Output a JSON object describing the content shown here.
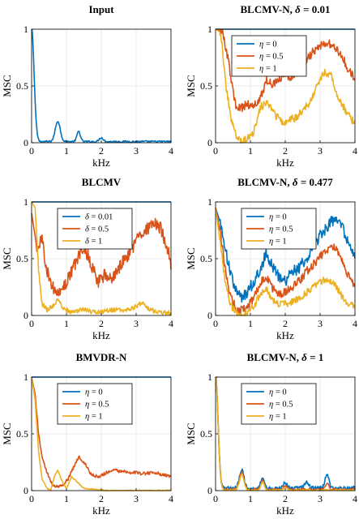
{
  "colors": {
    "blue": "#0072BD",
    "orange": "#D95319",
    "yellow": "#EDB120"
  },
  "chart_data": [
    {
      "type": "line",
      "title": "Input",
      "title_symbol": "",
      "title_value": "",
      "xlabel": "kHz",
      "ylabel": "MSC",
      "xlim": [
        0,
        4
      ],
      "ylim": [
        0,
        1
      ],
      "xticks": [
        "0",
        "1",
        "2",
        "3",
        "4"
      ],
      "yticks": [
        "0",
        "0.5",
        "1"
      ],
      "grid": true,
      "legend": null,
      "series": [
        {
          "color": "blue",
          "style": "decay",
          "peaks": [
            [
              0.0,
              1.0,
              0.1
            ],
            [
              0.75,
              0.18,
              0.1
            ],
            [
              1.35,
              0.09,
              0.07
            ],
            [
              2.0,
              0.035,
              0.08
            ]
          ],
          "base": 0.01,
          "noise": 0.008
        }
      ]
    },
    {
      "type": "line",
      "title": "BLCMV-N, ",
      "title_symbol": "δ",
      "title_value": " = 0.01",
      "xlabel": "kHz",
      "ylabel": "MSC",
      "xlim": [
        0,
        4
      ],
      "ylim": [
        0,
        1
      ],
      "xticks": [
        "0",
        "1",
        "2",
        "3",
        "4"
      ],
      "yticks": [
        "0",
        "0.5",
        "1"
      ],
      "grid": true,
      "legend": "top-left",
      "legend_var": "η",
      "series": [
        {
          "name": "= 0",
          "color": "blue",
          "x": [
            0,
            4
          ],
          "y": [
            1,
            1
          ]
        },
        {
          "name": "= 0.5",
          "color": "orange",
          "x": [
            0,
            0.2,
            0.35,
            0.5,
            0.6,
            0.7,
            0.9,
            1.1,
            1.3,
            1.45,
            1.6,
            1.8,
            2.0,
            2.2,
            2.4,
            2.6,
            2.8,
            3.0,
            3.2,
            3.4,
            3.6,
            3.8,
            4.0
          ],
          "y": [
            1,
            0.98,
            0.75,
            0.45,
            0.3,
            0.3,
            0.34,
            0.32,
            0.4,
            0.55,
            0.52,
            0.55,
            0.6,
            0.58,
            0.68,
            0.72,
            0.8,
            0.85,
            0.88,
            0.84,
            0.78,
            0.65,
            0.55
          ],
          "noise": 0.04
        },
        {
          "name": "= 1",
          "color": "yellow",
          "x": [
            0,
            0.15,
            0.3,
            0.45,
            0.6,
            0.75,
            0.9,
            1.1,
            1.3,
            1.5,
            1.7,
            1.9,
            2.1,
            2.3,
            2.5,
            2.7,
            2.9,
            3.1,
            3.3,
            3.5,
            3.7,
            3.9,
            4.0
          ],
          "y": [
            1,
            0.97,
            0.5,
            0.2,
            0.05,
            0.0,
            0.04,
            0.1,
            0.32,
            0.35,
            0.25,
            0.18,
            0.2,
            0.22,
            0.28,
            0.35,
            0.5,
            0.62,
            0.6,
            0.42,
            0.3,
            0.2,
            0.18
          ],
          "noise": 0.035
        }
      ]
    },
    {
      "type": "line",
      "title": "BLCMV",
      "title_symbol": "",
      "title_value": "",
      "xlabel": "kHz",
      "ylabel": "MSC",
      "xlim": [
        0,
        4
      ],
      "ylim": [
        0,
        1
      ],
      "xticks": [
        "0",
        "1",
        "2",
        "3",
        "4"
      ],
      "yticks": [
        "0",
        "0.5",
        "1"
      ],
      "grid": true,
      "legend": "top-center",
      "legend_var": "δ",
      "series": [
        {
          "name": "= 0.01",
          "color": "blue",
          "x": [
            0,
            4
          ],
          "y": [
            1,
            1
          ]
        },
        {
          "name": "= 0.5",
          "color": "orange",
          "x": [
            0,
            0.15,
            0.3,
            0.45,
            0.6,
            0.75,
            0.9,
            1.1,
            1.3,
            1.5,
            1.7,
            1.9,
            2.1,
            2.3,
            2.5,
            2.7,
            2.9,
            3.1,
            3.3,
            3.5,
            3.7,
            3.9,
            4.0
          ],
          "y": [
            0.9,
            0.6,
            0.65,
            0.4,
            0.25,
            0.18,
            0.25,
            0.35,
            0.5,
            0.62,
            0.45,
            0.3,
            0.35,
            0.32,
            0.42,
            0.5,
            0.6,
            0.7,
            0.75,
            0.8,
            0.78,
            0.6,
            0.45
          ],
          "noise": 0.06
        },
        {
          "name": "= 1",
          "color": "yellow",
          "x": [
            0,
            0.1,
            0.2,
            0.3,
            0.45,
            0.6,
            0.75,
            0.9,
            1.1,
            1.3,
            1.5,
            1.8,
            2.1,
            2.4,
            2.7,
            3.0,
            3.2,
            3.35,
            3.5,
            3.7,
            4.0
          ],
          "y": [
            1,
            0.95,
            0.4,
            0.1,
            0.05,
            0.08,
            0.14,
            0.07,
            0.03,
            0.04,
            0.05,
            0.03,
            0.04,
            0.05,
            0.04,
            0.08,
            0.12,
            0.06,
            0.04,
            0.03,
            0.02
          ],
          "noise": 0.02
        }
      ]
    },
    {
      "type": "line",
      "title": "BLCMV-N, ",
      "title_symbol": "δ",
      "title_value": " = 0.477",
      "xlabel": "kHz",
      "ylabel": "MSC",
      "xlim": [
        0,
        4
      ],
      "ylim": [
        0,
        1
      ],
      "xticks": [
        "0",
        "1",
        "2",
        "3",
        "4"
      ],
      "yticks": [
        "0",
        "0.5",
        "1"
      ],
      "grid": true,
      "legend": "top-center",
      "legend_var": "η",
      "series": [
        {
          "name": "= 0",
          "color": "blue",
          "x": [
            0,
            0.15,
            0.3,
            0.45,
            0.6,
            0.75,
            0.9,
            1.1,
            1.3,
            1.45,
            1.6,
            1.8,
            2.0,
            2.2,
            2.4,
            2.6,
            2.8,
            3.0,
            3.2,
            3.4,
            3.6,
            3.8,
            4.0
          ],
          "y": [
            0.95,
            0.8,
            0.55,
            0.35,
            0.2,
            0.15,
            0.2,
            0.3,
            0.42,
            0.55,
            0.45,
            0.35,
            0.3,
            0.38,
            0.42,
            0.5,
            0.6,
            0.7,
            0.78,
            0.85,
            0.8,
            0.65,
            0.5
          ],
          "noise": 0.05
        },
        {
          "name": "= 0.5",
          "color": "orange",
          "x": [
            0,
            0.15,
            0.3,
            0.45,
            0.6,
            0.75,
            0.9,
            1.1,
            1.3,
            1.45,
            1.6,
            1.8,
            2.0,
            2.2,
            2.4,
            2.6,
            2.8,
            3.0,
            3.2,
            3.4,
            3.6,
            3.8,
            4.0
          ],
          "y": [
            0.95,
            0.7,
            0.35,
            0.15,
            0.05,
            0.04,
            0.08,
            0.15,
            0.3,
            0.35,
            0.25,
            0.18,
            0.2,
            0.25,
            0.3,
            0.38,
            0.45,
            0.52,
            0.58,
            0.6,
            0.5,
            0.35,
            0.25
          ],
          "noise": 0.04
        },
        {
          "name": "= 1",
          "color": "yellow",
          "x": [
            0,
            0.15,
            0.3,
            0.45,
            0.6,
            0.75,
            0.9,
            1.1,
            1.3,
            1.45,
            1.6,
            1.8,
            2.0,
            2.2,
            2.4,
            2.6,
            2.8,
            3.0,
            3.2,
            3.4,
            3.6,
            3.8,
            4.0
          ],
          "y": [
            0.95,
            0.6,
            0.25,
            0.08,
            0.02,
            0.0,
            0.03,
            0.08,
            0.2,
            0.25,
            0.15,
            0.1,
            0.1,
            0.12,
            0.15,
            0.2,
            0.25,
            0.3,
            0.32,
            0.28,
            0.18,
            0.1,
            0.08
          ],
          "noise": 0.03
        }
      ]
    },
    {
      "type": "line",
      "title": "BMVDR-N",
      "title_symbol": "",
      "title_value": "",
      "xlabel": "kHz",
      "ylabel": "MSC",
      "xlim": [
        0,
        4
      ],
      "ylim": [
        0,
        1
      ],
      "xticks": [
        "0",
        "1",
        "2",
        "3",
        "4"
      ],
      "yticks": [
        "0",
        "0.5",
        "1"
      ],
      "grid": true,
      "legend": "top-center",
      "legend_var": "η",
      "series": [
        {
          "name": "= 0",
          "color": "blue",
          "x": [
            0,
            4
          ],
          "y": [
            1,
            1
          ]
        },
        {
          "name": "= 0.5",
          "color": "orange",
          "x": [
            0,
            0.1,
            0.2,
            0.3,
            0.45,
            0.6,
            0.75,
            0.9,
            1.05,
            1.2,
            1.35,
            1.5,
            1.7,
            1.9,
            2.1,
            2.3,
            2.6,
            2.9,
            3.2,
            3.5,
            3.8,
            4.0
          ],
          "y": [
            1,
            0.85,
            0.5,
            0.3,
            0.15,
            0.05,
            0.03,
            0.05,
            0.1,
            0.2,
            0.3,
            0.25,
            0.15,
            0.12,
            0.15,
            0.18,
            0.17,
            0.16,
            0.15,
            0.16,
            0.14,
            0.12
          ],
          "noise": 0.015
        },
        {
          "name": "= 1",
          "color": "yellow",
          "x": [
            0,
            0.1,
            0.2,
            0.3,
            0.45,
            0.55,
            0.65,
            0.75,
            0.85,
            1.0,
            1.15,
            1.3,
            1.5,
            1.8,
            2.2,
            2.6,
            3.0,
            3.5,
            4.0
          ],
          "y": [
            1,
            0.8,
            0.35,
            0.1,
            0.02,
            0.0,
            0.12,
            0.18,
            0.1,
            0.02,
            0.12,
            0.08,
            0.02,
            0.01,
            0.0,
            0.0,
            0.0,
            0.0,
            0.0
          ],
          "noise": 0.005
        }
      ]
    },
    {
      "type": "line",
      "title": "BLCMV-N, ",
      "title_symbol": "δ",
      "title_value": " = 1",
      "xlabel": "kHz",
      "ylabel": "MSC",
      "xlim": [
        0,
        4
      ],
      "ylim": [
        0,
        1
      ],
      "xticks": [
        "0",
        "1",
        "2",
        "3",
        "4"
      ],
      "yticks": [
        "0",
        "0.5",
        "1"
      ],
      "grid": true,
      "legend": "top-center",
      "legend_var": "η",
      "series": [
        {
          "name": "= 0",
          "color": "blue",
          "style": "decay",
          "peaks": [
            [
              0.0,
              1.0,
              0.1
            ],
            [
              0.75,
              0.17,
              0.09
            ],
            [
              1.35,
              0.1,
              0.07
            ],
            [
              2.0,
              0.05,
              0.08
            ],
            [
              2.6,
              0.05,
              0.1
            ],
            [
              3.2,
              0.12,
              0.08
            ]
          ],
          "base": 0.02,
          "noise": 0.018
        },
        {
          "name": "= 0.5",
          "color": "orange",
          "style": "decay",
          "peaks": [
            [
              0.0,
              1.0,
              0.1
            ],
            [
              0.75,
              0.15,
              0.09
            ],
            [
              1.35,
              0.08,
              0.07
            ],
            [
              2.0,
              0.03,
              0.08
            ],
            [
              3.2,
              0.05,
              0.08
            ]
          ],
          "base": 0.01,
          "noise": 0.01
        },
        {
          "name": "= 1",
          "color": "yellow",
          "style": "decay",
          "peaks": [
            [
              0.0,
              1.0,
              0.1
            ],
            [
              0.75,
              0.14,
              0.09
            ],
            [
              1.35,
              0.07,
              0.07
            ],
            [
              2.0,
              0.02,
              0.08
            ]
          ],
          "base": 0.005,
          "noise": 0.006
        }
      ]
    }
  ]
}
